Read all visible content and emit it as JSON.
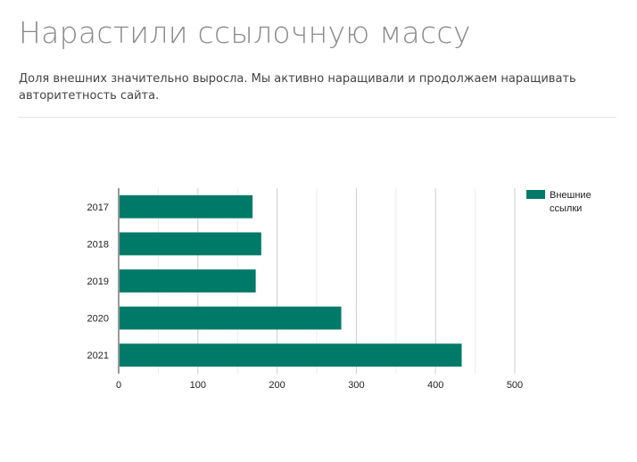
{
  "page": {
    "title": "Нарастили ссылочную массу",
    "lead": "Доля внешних значительно выросла. Мы активно наращивали и продолжаем наращивать авторитетность сайта."
  },
  "chart_data": {
    "type": "bar",
    "orientation": "horizontal",
    "categories": [
      "2017",
      "2018",
      "2019",
      "2020",
      "2021"
    ],
    "series": [
      {
        "name": "Внешние ссылки",
        "color": "#007a68",
        "values": [
          169,
          180,
          173,
          281,
          433
        ]
      }
    ],
    "xlim": [
      0,
      500
    ],
    "xticks": [
      "0",
      "100",
      "200",
      "300",
      "400",
      "500"
    ],
    "grid": true,
    "legend": {
      "position": "top-right",
      "lines": [
        "Внешние",
        "ссылки"
      ]
    }
  }
}
